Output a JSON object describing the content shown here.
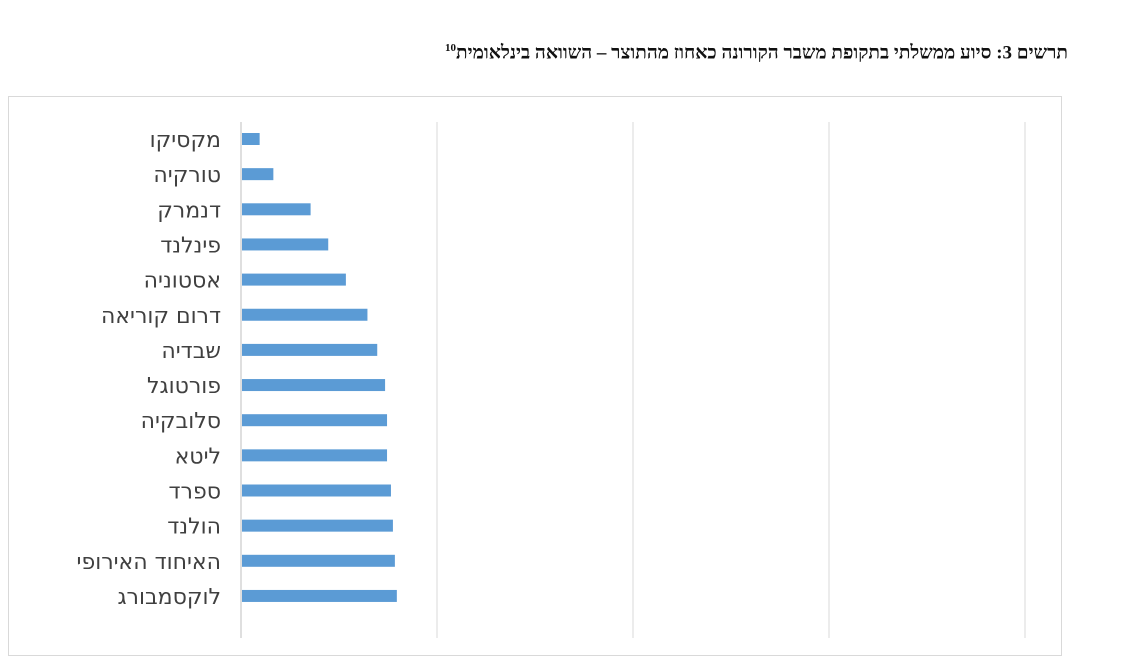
{
  "title": {
    "text": "תרשים 3: סיוע ממשלתי בתקופת משבר הקורונה כאחוז מהתוצר – השוואה בינלאומית",
    "footnote": "10"
  },
  "chart_data": {
    "type": "bar",
    "orientation": "horizontal",
    "title": "תרשים 3: סיוע ממשלתי בתקופת משבר הקורונה כאחוז מהתוצר – השוואה בינלאומית",
    "categories": [
      "מקסיקו",
      "טורקיה",
      "דנמרק",
      "פינלנד",
      "אסטוניה",
      "דרום קוריאה",
      "שבדיה",
      "פורטוגל",
      "סלובקיה",
      "ליטא",
      "ספרד",
      "הולנד",
      "האיחוד האירופי",
      "לוקסמבורג"
    ],
    "values": [
      0.9,
      1.6,
      3.5,
      4.4,
      5.3,
      6.4,
      6.9,
      7.3,
      7.4,
      7.4,
      7.6,
      7.7,
      7.8,
      7.9
    ],
    "xlim": [
      0,
      40
    ],
    "grid": true,
    "bar_color": "#5b9bd5"
  }
}
